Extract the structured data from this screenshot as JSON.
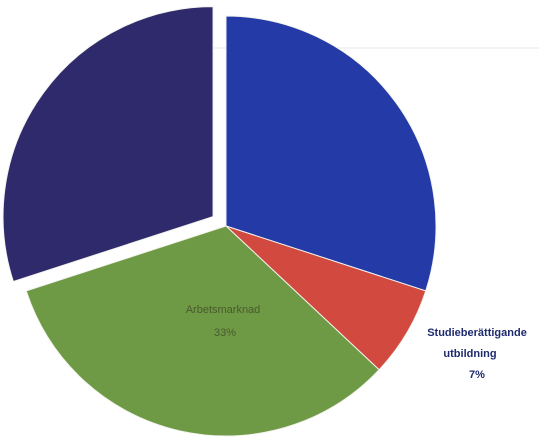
{
  "chart_data": {
    "type": "pie",
    "slices": [
      {
        "label": "",
        "value": 30,
        "color": "#243aa6",
        "label_color": "#4a5cc4"
      },
      {
        "label": "Studieberättigande utbildning",
        "value": 7,
        "value_text": "7%",
        "color": "#d24a3f",
        "label_color": "#1e2a6e"
      },
      {
        "label": "Arbetsmarknad",
        "value": 33,
        "value_text": "33%",
        "color": "#6e9a45",
        "label_color": "#4a5a2e"
      },
      {
        "label": "",
        "value": 30,
        "color": "#2f2a6c",
        "label_color": "#4a4a8c",
        "exploded": true
      }
    ]
  }
}
